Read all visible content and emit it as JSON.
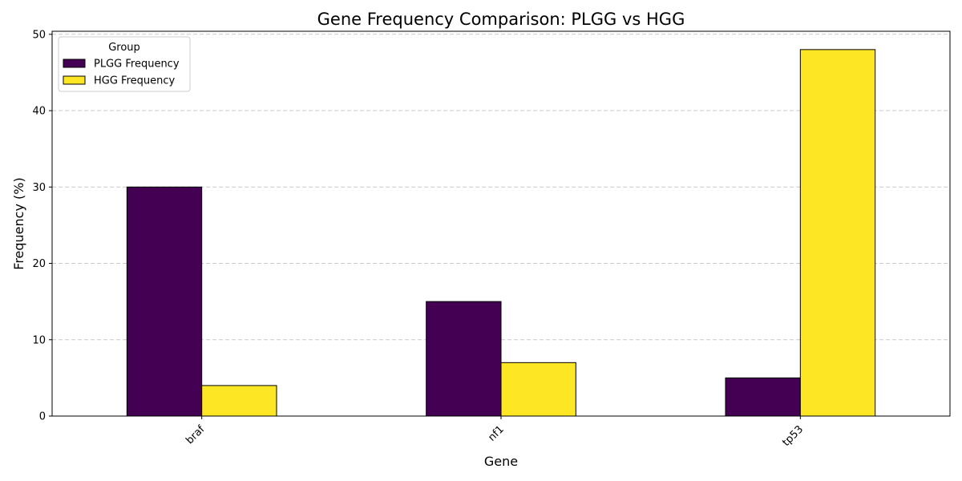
{
  "chart_data": {
    "type": "bar",
    "title": "Gene Frequency Comparison: PLGG vs HGG",
    "xlabel": "Gene",
    "ylabel": "Frequency (%)",
    "categories": [
      "braf",
      "nf1",
      "tp53"
    ],
    "series": [
      {
        "name": "PLGG Frequency",
        "values": [
          30,
          15,
          5
        ],
        "color": "#440154"
      },
      {
        "name": "HGG Frequency",
        "values": [
          4,
          7,
          48
        ],
        "color": "#fde725"
      }
    ],
    "ylim": [
      0,
      50.4
    ],
    "yticks": [
      0,
      10,
      20,
      30,
      40,
      50
    ],
    "grid": {
      "y": true,
      "x": false,
      "style": "dashed"
    },
    "legend": {
      "title": "Group",
      "placement": "top-left"
    },
    "x_tick_rotation": 45
  }
}
